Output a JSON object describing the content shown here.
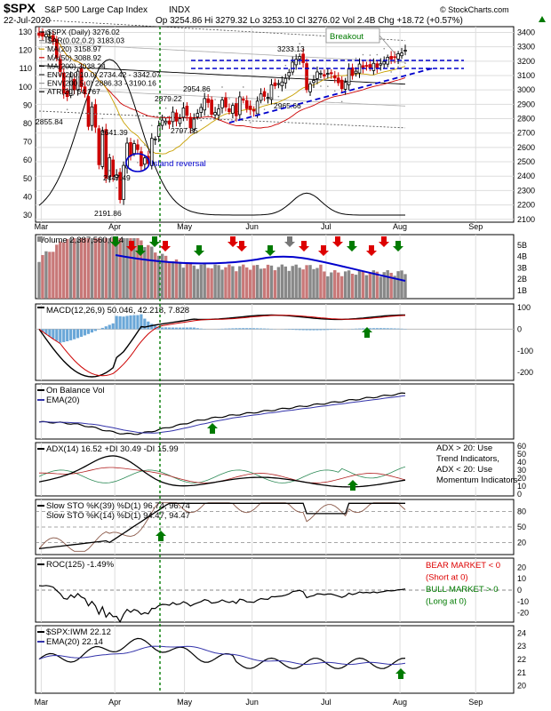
{
  "header": {
    "symbol": "$SPX",
    "name": "S&P 500 Large Cap Index",
    "exchange": "INDX",
    "date": "22-Jul-2020",
    "quote": "Op 3254.86  Hi 3279.32  Lo 3253.10  Cl 3276.02  Vol 2.4B  Chg +18.72 (+0.57%)",
    "copyright": "© StockCharts.com",
    "change_arrow": "up-triangle-icon"
  },
  "chart_data": [
    {
      "type": "candlestick",
      "title": "$SPX (Daily) 3276.02",
      "legend": [
        {
          "label": "$SPX (Daily) 3276.02",
          "color": "#000000"
        },
        {
          "label": "SAR(0.02,0.2) 3183.03",
          "color": "#808080"
        },
        {
          "label": "MA(20) 3158.97",
          "color": "#c8a000"
        },
        {
          "label": "MA(50) 3088.92",
          "color": "#cc0000"
        },
        {
          "label": "MA(200) 3038.24",
          "color": "#000000"
        },
        {
          "label": "ENV(200,10.0) 2734.42 - 3342.07",
          "color": "#333333"
        },
        {
          "label": "ENV(200,5.0) 2886.33 - 3190.16",
          "color": "#999999"
        },
        {
          "label": "ATR(20) 54.767",
          "color": "#000000"
        }
      ],
      "price_ticks": [
        2100,
        2200,
        2300,
        2400,
        2500,
        2600,
        2700,
        2800,
        2900,
        3000,
        3100,
        3200,
        3300,
        3400
      ],
      "atr_ticks": [
        30,
        40,
        50,
        60,
        70,
        80,
        90,
        100,
        110,
        120,
        130
      ],
      "x_labels": [
        "Mar",
        "Apr",
        "May",
        "Jun",
        "Jul",
        "Aug",
        "Sep"
      ],
      "ylim": [
        2080,
        3440
      ],
      "price_labels": [
        "2855.84",
        "2641.39",
        "2447.49",
        "2191.86",
        "2879.22",
        "2954.86",
        "2797.85",
        "3233.13",
        "2965.66"
      ],
      "annotations": {
        "breakout": "Breakout",
        "island": "Island reversal"
      },
      "closes": [
        3380,
        3373,
        3386,
        3370,
        3337,
        3225,
        3128,
        2978,
        2954,
        3090,
        3003,
        3130,
        3023,
        2972,
        2746,
        2882,
        2741,
        2480,
        2711,
        2386,
        2529,
        2398,
        2409,
        2237,
        2475,
        2630,
        2541,
        2627,
        2585,
        2471,
        2527,
        2489,
        2663,
        2659,
        2750,
        2790,
        2783,
        2762,
        2846,
        2783,
        2800,
        2874,
        2823,
        2736,
        2797,
        2837,
        2878,
        2940,
        2912,
        2830,
        2843,
        2868,
        2930,
        2881,
        2849,
        2892,
        2820,
        2952,
        2930,
        2870,
        2863,
        2853,
        2922,
        2972,
        2955,
        2948,
        3036,
        3029,
        3044,
        3055,
        3080,
        3122,
        3193,
        3213,
        3232,
        3190,
        3002,
        3041,
        3066,
        3125,
        3116,
        3097,
        3115,
        3117,
        3083,
        3050,
        3009,
        3053,
        3145,
        3100,
        3130,
        3180,
        3155,
        3169,
        3152,
        3185,
        3155,
        3182,
        3197,
        3227,
        3215,
        3225,
        3251,
        3257,
        3276
      ]
    },
    {
      "type": "bar",
      "title": "Volume 2,387,560,064",
      "ticks": [
        "1B",
        "2B",
        "3B",
        "4B",
        "5B"
      ],
      "trend_color": "#0000cc",
      "bar_colors": {
        "up": "#888888",
        "down": "#c87878"
      }
    },
    {
      "type": "line",
      "title": "MACD(12,26,9) 50.046, 42.218, 7.828",
      "ticks": [
        100,
        0,
        -100,
        -200
      ]
    },
    {
      "type": "line",
      "title": "On Balance Vol",
      "legend": [
        "On Balance Vol",
        "EMA(20)"
      ]
    },
    {
      "type": "line",
      "title": "ADX(14) 16.52 +DI 30.49 -DI 15.99",
      "ticks": [
        60,
        50,
        40,
        30,
        20,
        10,
        0
      ],
      "note": [
        "ADX > 20: Use",
        "Trend Indicators,",
        "ADX < 20: Use",
        "Momentum Indicators"
      ]
    },
    {
      "type": "line",
      "title": "Slow STO %K(39) %D(1) 96.74, 96.74",
      "subtitle": "Slow STO %K(14) %D(1) 94.47, 94.47",
      "ticks": [
        80,
        50,
        20
      ]
    },
    {
      "type": "line",
      "title": "ROC(125) -1.49%",
      "ticks": [
        20,
        10,
        0,
        -10,
        -20
      ],
      "notes": [
        "BEAR MARKET < 0",
        "(Short at 0)",
        "BULL MARKET > 0",
        "(Long at 0)"
      ]
    },
    {
      "type": "line",
      "title": "$SPX:IWM 22.12",
      "legend": [
        "$SPX:IWM 22.12",
        "EMA(20) 22.14"
      ],
      "ticks": [
        24,
        23,
        22,
        21,
        20
      ]
    }
  ],
  "colors": {
    "up": "#000000",
    "down": "#cc0000",
    "green": "#007a00",
    "blue": "#0000cc",
    "red": "#dd0000",
    "grid": "#dddddd"
  }
}
